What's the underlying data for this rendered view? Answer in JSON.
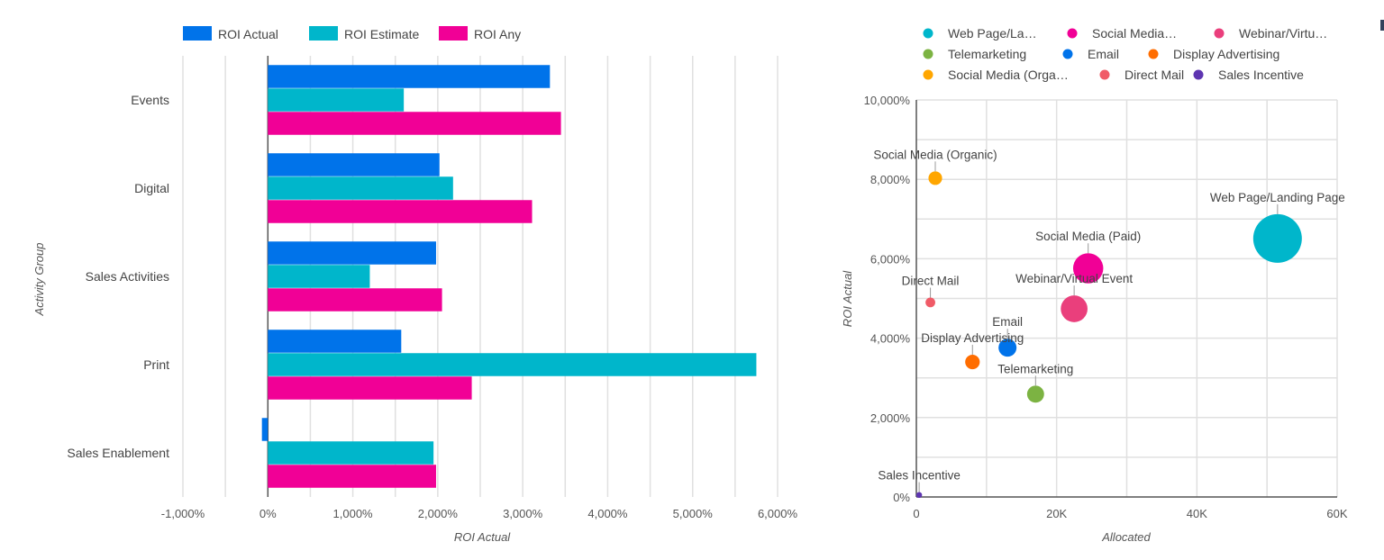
{
  "chart_data": [
    {
      "type": "bar",
      "orientation": "horizontal",
      "title": "",
      "xlabel": "ROI Actual",
      "ylabel": "Activity Group",
      "xlim": [
        -1000,
        6000
      ],
      "x_ticks": [
        -1000,
        0,
        1000,
        2000,
        3000,
        4000,
        5000,
        6000
      ],
      "x_tick_labels": [
        "-1,000%",
        "0%",
        "1,000%",
        "2,000%",
        "3,000%",
        "4,000%",
        "5,000%",
        "6,000%"
      ],
      "value_unit": "percent",
      "grid": true,
      "legend_position": "top",
      "categories": [
        "Events",
        "Digital",
        "Sales Activities",
        "Print",
        "Sales Enablement"
      ],
      "series": [
        {
          "name": "ROI Actual",
          "color": "#0073EA",
          "values": [
            3320,
            2020,
            1980,
            1570,
            -70
          ]
        },
        {
          "name": "ROI Estimate",
          "color": "#00B6CB",
          "values": [
            1600,
            2180,
            1200,
            5750,
            1950
          ]
        },
        {
          "name": "ROI Any",
          "color": "#F10096",
          "values": [
            3450,
            3110,
            2050,
            2400,
            1980
          ]
        }
      ]
    },
    {
      "type": "scatter",
      "subtype": "bubble",
      "title": "",
      "xlabel": "Allocated",
      "ylabel": "ROI Actual",
      "xlim": [
        0,
        60000
      ],
      "ylim": [
        0,
        10000
      ],
      "x_ticks": [
        0,
        20000,
        40000,
        60000
      ],
      "x_tick_labels": [
        "0",
        "20K",
        "40K",
        "60K"
      ],
      "y_ticks": [
        0,
        2000,
        4000,
        6000,
        8000,
        10000
      ],
      "y_tick_labels": [
        "0%",
        "2,000%",
        "4,000%",
        "6,000%",
        "8,000%",
        "10,000%"
      ],
      "grid": true,
      "legend_position": "top",
      "legend_labels": [
        "Web Page/La…",
        "Social Media…",
        "Webinar/Virtu…",
        "Telemarketing",
        "Email",
        "Display Advertising",
        "Social Media (Orga…",
        "Direct Mail",
        "Sales Incentive"
      ],
      "points": [
        {
          "name": "Web Page/Landing Page",
          "color": "#00B6CB",
          "x": 51500,
          "y": 6510,
          "size": 1.0
        },
        {
          "name": "Social Media (Paid)",
          "color": "#F10096",
          "x": 24500,
          "y": 5760,
          "size": 0.62
        },
        {
          "name": "Webinar/Virtual Event",
          "color": "#EA3F7C",
          "x": 22500,
          "y": 4740,
          "size": 0.55
        },
        {
          "name": "Telemarketing",
          "color": "#7CB342",
          "x": 17000,
          "y": 2590,
          "size": 0.35
        },
        {
          "name": "Email",
          "color": "#0073EA",
          "x": 13000,
          "y": 3760,
          "size": 0.37
        },
        {
          "name": "Display Advertising",
          "color": "#FF6D00",
          "x": 8000,
          "y": 3400,
          "size": 0.3
        },
        {
          "name": "Social Media (Organic)",
          "color": "#FFA600",
          "x": 2700,
          "y": 8030,
          "size": 0.28
        },
        {
          "name": "Direct Mail",
          "color": "#F05B67",
          "x": 2000,
          "y": 4900,
          "size": 0.2
        },
        {
          "name": "Sales Incentive",
          "color": "#5E35B1",
          "x": 400,
          "y": 50,
          "size": 0.12
        }
      ]
    }
  ]
}
